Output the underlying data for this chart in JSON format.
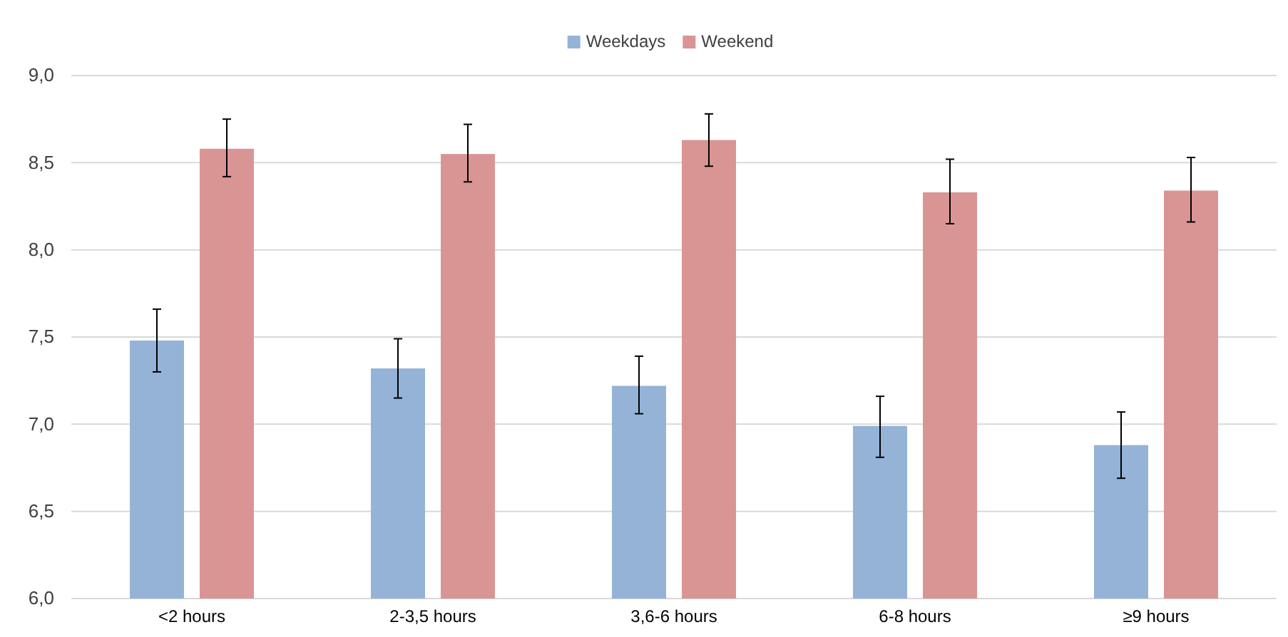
{
  "chart_data": {
    "type": "bar",
    "categories": [
      "<2 hours",
      "2-3,5 hours",
      "3,6-6 hours",
      "6-8 hours",
      "≥9 hours"
    ],
    "series": [
      {
        "name": "Weekdays",
        "color": "#95b3d7",
        "values": [
          7.48,
          7.32,
          7.22,
          6.99,
          6.88
        ],
        "errors": [
          [
            7.3,
            7.66
          ],
          [
            7.15,
            7.49
          ],
          [
            7.06,
            7.39
          ],
          [
            6.81,
            7.16
          ],
          [
            6.69,
            7.07
          ]
        ]
      },
      {
        "name": "Weekend",
        "color": "#d99594",
        "values": [
          8.58,
          8.55,
          8.63,
          8.33,
          8.34
        ],
        "errors": [
          [
            8.42,
            8.75
          ],
          [
            8.39,
            8.72
          ],
          [
            8.48,
            8.78
          ],
          [
            8.15,
            8.52
          ],
          [
            8.16,
            8.53
          ]
        ]
      }
    ],
    "ylim": [
      6,
      9
    ],
    "yticks": [
      {
        "value": 6,
        "label": "6,0"
      },
      {
        "value": 6.5,
        "label": "6,5"
      },
      {
        "value": 7,
        "label": "7,0"
      },
      {
        "value": 7.5,
        "label": "7,5"
      },
      {
        "value": 8,
        "label": "8,0"
      },
      {
        "value": 8.5,
        "label": "8,5"
      },
      {
        "value": 9,
        "label": "9,0"
      }
    ],
    "grid": "y",
    "legend": "top"
  }
}
